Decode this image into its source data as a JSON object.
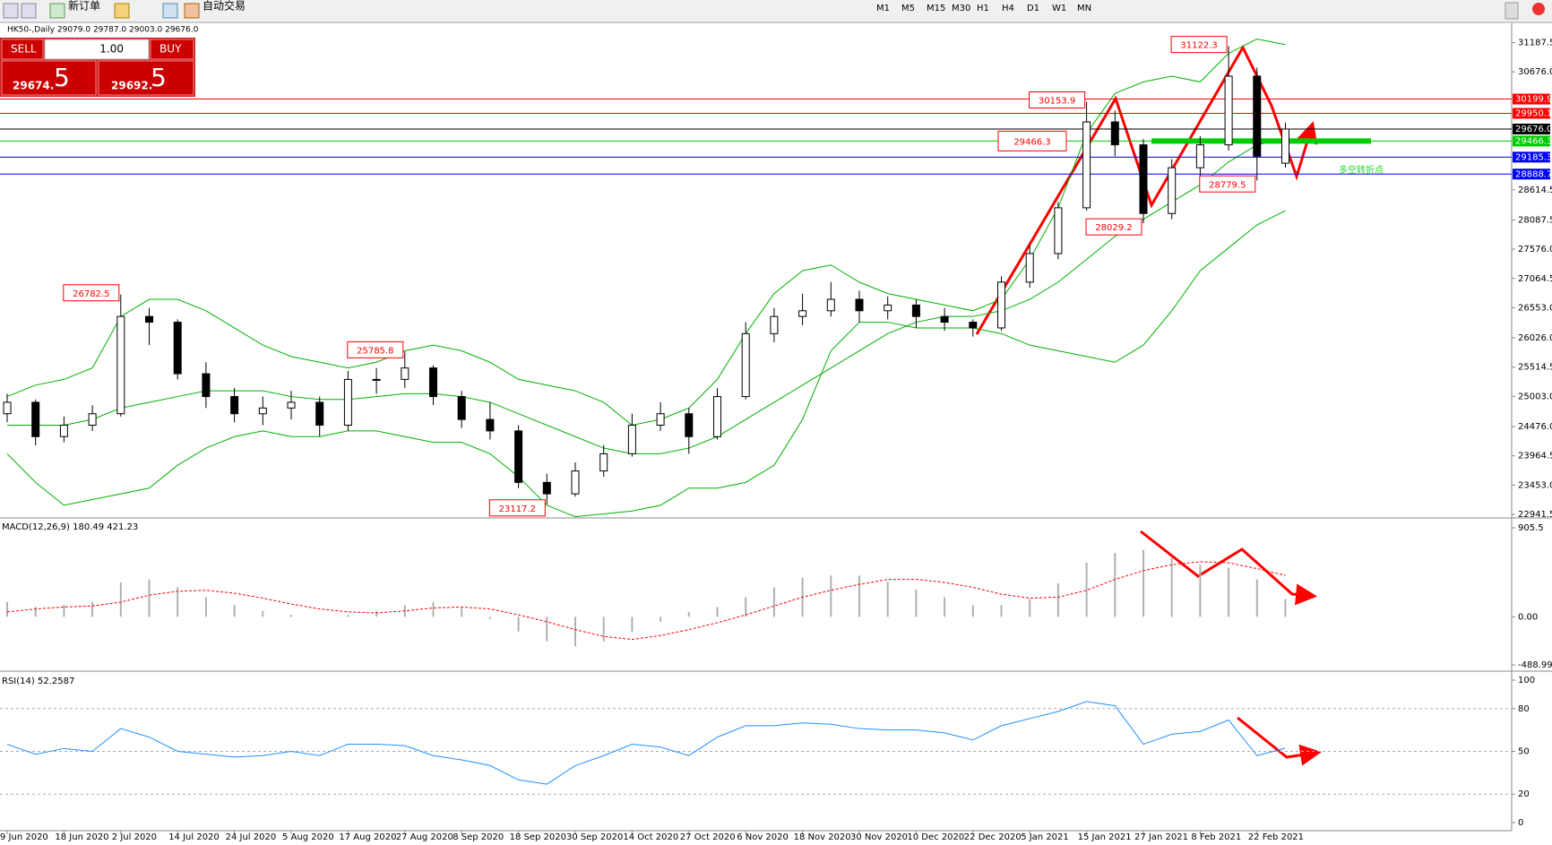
{
  "toolbar": {
    "new_order": "新订单",
    "auto_trading": "自动交易",
    "timeframes": [
      "M1",
      "M5",
      "M15",
      "M30",
      "H1",
      "H4",
      "D1",
      "W1",
      "MN"
    ]
  },
  "trade_panel": {
    "sell": "SELL",
    "buy": "BUY",
    "lot": "1.00",
    "sell_price_main": "29674.",
    "sell_price_big": "5",
    "buy_price_main": "29692.",
    "buy_price_big": "5"
  },
  "chart_data": {
    "type": "candlestick",
    "title": "HK50-,Daily  29079.0 29787.0 29003.0 29676.0",
    "categories": [
      "9 Jun 2020",
      null,
      "18 Jun 2020",
      null,
      "2 Jul 2020",
      null,
      "14 Jul 2020",
      null,
      "24 Jul 2020",
      null,
      "5 Aug 2020",
      null,
      "17 Aug 2020",
      null,
      "27 Aug 2020",
      null,
      "8 Sep 2020",
      null,
      "18 Sep 2020",
      null,
      "30 Sep 2020",
      null,
      "14 Oct 2020",
      null,
      "27 Oct 2020",
      null,
      "6 Nov 2020",
      null,
      "18 Nov 2020",
      null,
      "30 Nov 2020",
      null,
      "10 Dec 2020",
      null,
      "22 Dec 2020",
      null,
      "5 Jan 2021",
      null,
      "15 Jan 2021",
      null,
      "27 Jan 2021",
      null,
      "8 Feb 2021",
      null,
      "22 Feb 2021",
      null
    ],
    "candles": [
      [
        24700,
        25050,
        24550,
        24900
      ],
      [
        24900,
        24950,
        24150,
        24300
      ],
      [
        24300,
        24650,
        24200,
        24500
      ],
      [
        24500,
        24850,
        24400,
        24700
      ],
      [
        24700,
        26782.5,
        24650,
        26400
      ],
      [
        26400,
        26550,
        25900,
        26300
      ],
      [
        26300,
        26350,
        25300,
        25400
      ],
      [
        25400,
        25600,
        24800,
        25000
      ],
      [
        25000,
        25150,
        24550,
        24700
      ],
      [
        24700,
        25000,
        24500,
        24800
      ],
      [
        24800,
        25100,
        24600,
        24900
      ],
      [
        24900,
        25000,
        24300,
        24500
      ],
      [
        24500,
        25450,
        24400,
        25300
      ],
      [
        25300,
        25500,
        25050,
        25300
      ],
      [
        25300,
        25785.8,
        25150,
        25500
      ],
      [
        25500,
        25550,
        24850,
        25000
      ],
      [
        25000,
        25100,
        24450,
        24600
      ],
      [
        24600,
        24900,
        24250,
        24400
      ],
      [
        24400,
        24500,
        23400,
        23500
      ],
      [
        23500,
        23650,
        23117.2,
        23300
      ],
      [
        23300,
        23850,
        23250,
        23700
      ],
      [
        23700,
        24150,
        23600,
        24000
      ],
      [
        24000,
        24700,
        23950,
        24500
      ],
      [
        24500,
        24900,
        24400,
        24700
      ],
      [
        24700,
        24800,
        24000,
        24300
      ],
      [
        24300,
        25150,
        24250,
        25000
      ],
      [
        25000,
        26300,
        24950,
        26100
      ],
      [
        26100,
        26550,
        25950,
        26400
      ],
      [
        26400,
        26800,
        26250,
        26500
      ],
      [
        26500,
        27000,
        26400,
        26700
      ],
      [
        26700,
        26850,
        26300,
        26500
      ],
      [
        26500,
        26750,
        26350,
        26600
      ],
      [
        26600,
        26700,
        26200,
        26400
      ],
      [
        26400,
        26550,
        26150,
        26300
      ],
      [
        26300,
        26350,
        26050,
        26200
      ],
      [
        26200,
        27100,
        26150,
        27000
      ],
      [
        27000,
        27650,
        26900,
        27500
      ],
      [
        27500,
        28400,
        27400,
        28300
      ],
      [
        28300,
        30153.9,
        28250,
        29800
      ],
      [
        29800,
        30000,
        29200,
        29400
      ],
      [
        29400,
        29500,
        28029.2,
        28200
      ],
      [
        28200,
        29150,
        28100,
        29000
      ],
      [
        29000,
        29550,
        28700,
        29400
      ],
      [
        29400,
        31122.3,
        29300,
        30600
      ],
      [
        30600,
        30750,
        28779.5,
        29200
      ],
      [
        29079.0,
        29787.0,
        29003.0,
        29676.0
      ]
    ],
    "bands": {
      "color": "#00b000",
      "upper": [
        25000,
        25200,
        25300,
        25500,
        26400,
        26700,
        26700,
        26500,
        26200,
        25900,
        25700,
        25600,
        25500,
        25600,
        25800,
        25900,
        25800,
        25600,
        25300,
        25200,
        25100,
        24900,
        24500,
        24600,
        24800,
        25300,
        26100,
        26800,
        27200,
        27300,
        27000,
        26800,
        26700,
        26600,
        26500,
        26700,
        27400,
        28300,
        29600,
        30300,
        30500,
        30600,
        30500,
        31000,
        31250,
        31150
      ],
      "middle": [
        24500,
        24500,
        24500,
        24600,
        24800,
        24900,
        25000,
        25100,
        25100,
        25100,
        25000,
        24950,
        24950,
        25000,
        25050,
        25050,
        25000,
        24900,
        24700,
        24500,
        24300,
        24100,
        24000,
        24000,
        24100,
        24300,
        24600,
        24900,
        25200,
        25500,
        25800,
        26100,
        26300,
        26400,
        26400,
        26500,
        26700,
        27000,
        27400,
        27800,
        28100,
        28400,
        28700,
        29100,
        29400,
        29500
      ],
      "lower": [
        24000,
        23500,
        23100,
        23200,
        23300,
        23400,
        23800,
        24100,
        24300,
        24400,
        24300,
        24300,
        24400,
        24400,
        24300,
        24200,
        24200,
        24000,
        23600,
        23100,
        22900,
        22950,
        23000,
        23100,
        23400,
        23400,
        23500,
        23800,
        24600,
        25800,
        26300,
        26300,
        26200,
        26200,
        26200,
        26100,
        25900,
        25800,
        25700,
        25600,
        25900,
        26500,
        27200,
        27600,
        28000,
        28250
      ]
    },
    "ylim": [
      22894.5,
      31493
    ],
    "yticks": [
      22941.5,
      {
        "value": 23453.0,
        "label": "23453.0"
      },
      23964.5,
      {
        "value": 24476.0,
        "label": "24476.0"
      },
      {
        "value": 25003.0,
        "label": "25003.0"
      },
      25514.5,
      {
        "value": 26026.0,
        "label": "26026.0"
      },
      {
        "value": 26553.0,
        "label": "26553.0"
      },
      27064.5,
      {
        "value": 27576.0,
        "label": "27576.0"
      },
      28087.5,
      28614.5,
      {
        "value": 30676.0,
        "label": "30676.0"
      },
      31187.5
    ],
    "levels": [
      {
        "value": 30199.9,
        "color": "#ff0000",
        "label_color": "#ffffff"
      },
      {
        "value": 29950.1,
        "color": "#ff0000",
        "label_color": "#ffffff"
      },
      {
        "value": 29676.0,
        "label": "29676.0",
        "color": "#000000",
        "label_color": "#ffffff"
      },
      {
        "value": 29466.3,
        "color": "#00cc00",
        "label_color": "#ffffff"
      },
      {
        "value": 29185.3,
        "color": "#0000ff",
        "label_color": "#ffffff"
      },
      {
        "value": 28888.7,
        "color": "#0000ff",
        "label_color": "#ffffff"
      }
    ],
    "annotations": [
      26782.5,
      25785.8,
      23117.2,
      30153.9,
      28029.2,
      31122.3,
      28779.5,
      29466.3
    ],
    "note": "多空转折点",
    "macd": {
      "title": "MACD(12,26,9) 180.49 421.23",
      "ylim": [
        -488.99,
        905.5
      ],
      "yticks": [
        905.5,
        {
          "value": 0,
          "label": "0.00"
        },
        -488.99
      ],
      "histogram": [
        150,
        100,
        120,
        150,
        350,
        380,
        300,
        200,
        120,
        60,
        20,
        0,
        20,
        60,
        120,
        150,
        90,
        -20,
        -150,
        -250,
        -300,
        -250,
        -150,
        -50,
        50,
        100,
        200,
        300,
        400,
        420,
        420,
        360,
        280,
        200,
        120,
        120,
        180,
        340,
        550,
        650,
        680,
        600,
        530,
        500,
        380,
        180.49
      ],
      "signal": [
        50,
        80,
        100,
        110,
        150,
        220,
        260,
        270,
        240,
        190,
        130,
        80,
        50,
        40,
        60,
        90,
        100,
        80,
        20,
        -50,
        -130,
        -200,
        -230,
        -190,
        -130,
        -60,
        20,
        110,
        200,
        270,
        330,
        380,
        380,
        350,
        300,
        230,
        190,
        200,
        270,
        380,
        470,
        530,
        560,
        550,
        490,
        421.23
      ],
      "histogram_color": "#b0b0b0",
      "signal_color": "#ff0000"
    },
    "rsi": {
      "title": "RSI(14) 52.2587",
      "ylim": [
        0,
        100
      ],
      "yticks": [
        100,
        80,
        50,
        20,
        0
      ],
      "levels": [
        80,
        50,
        20
      ],
      "color": "#1e90ff",
      "values": [
        55,
        48,
        52,
        50,
        66,
        60,
        50,
        48,
        46,
        47,
        50,
        47,
        55,
        55,
        54,
        47,
        44,
        40,
        30,
        27,
        40,
        47,
        55,
        53,
        47,
        60,
        68,
        68,
        70,
        69,
        66,
        65,
        65,
        63,
        58,
        68,
        73,
        78,
        85,
        82,
        55,
        62,
        64,
        72,
        47,
        52.2587
      ]
    }
  }
}
